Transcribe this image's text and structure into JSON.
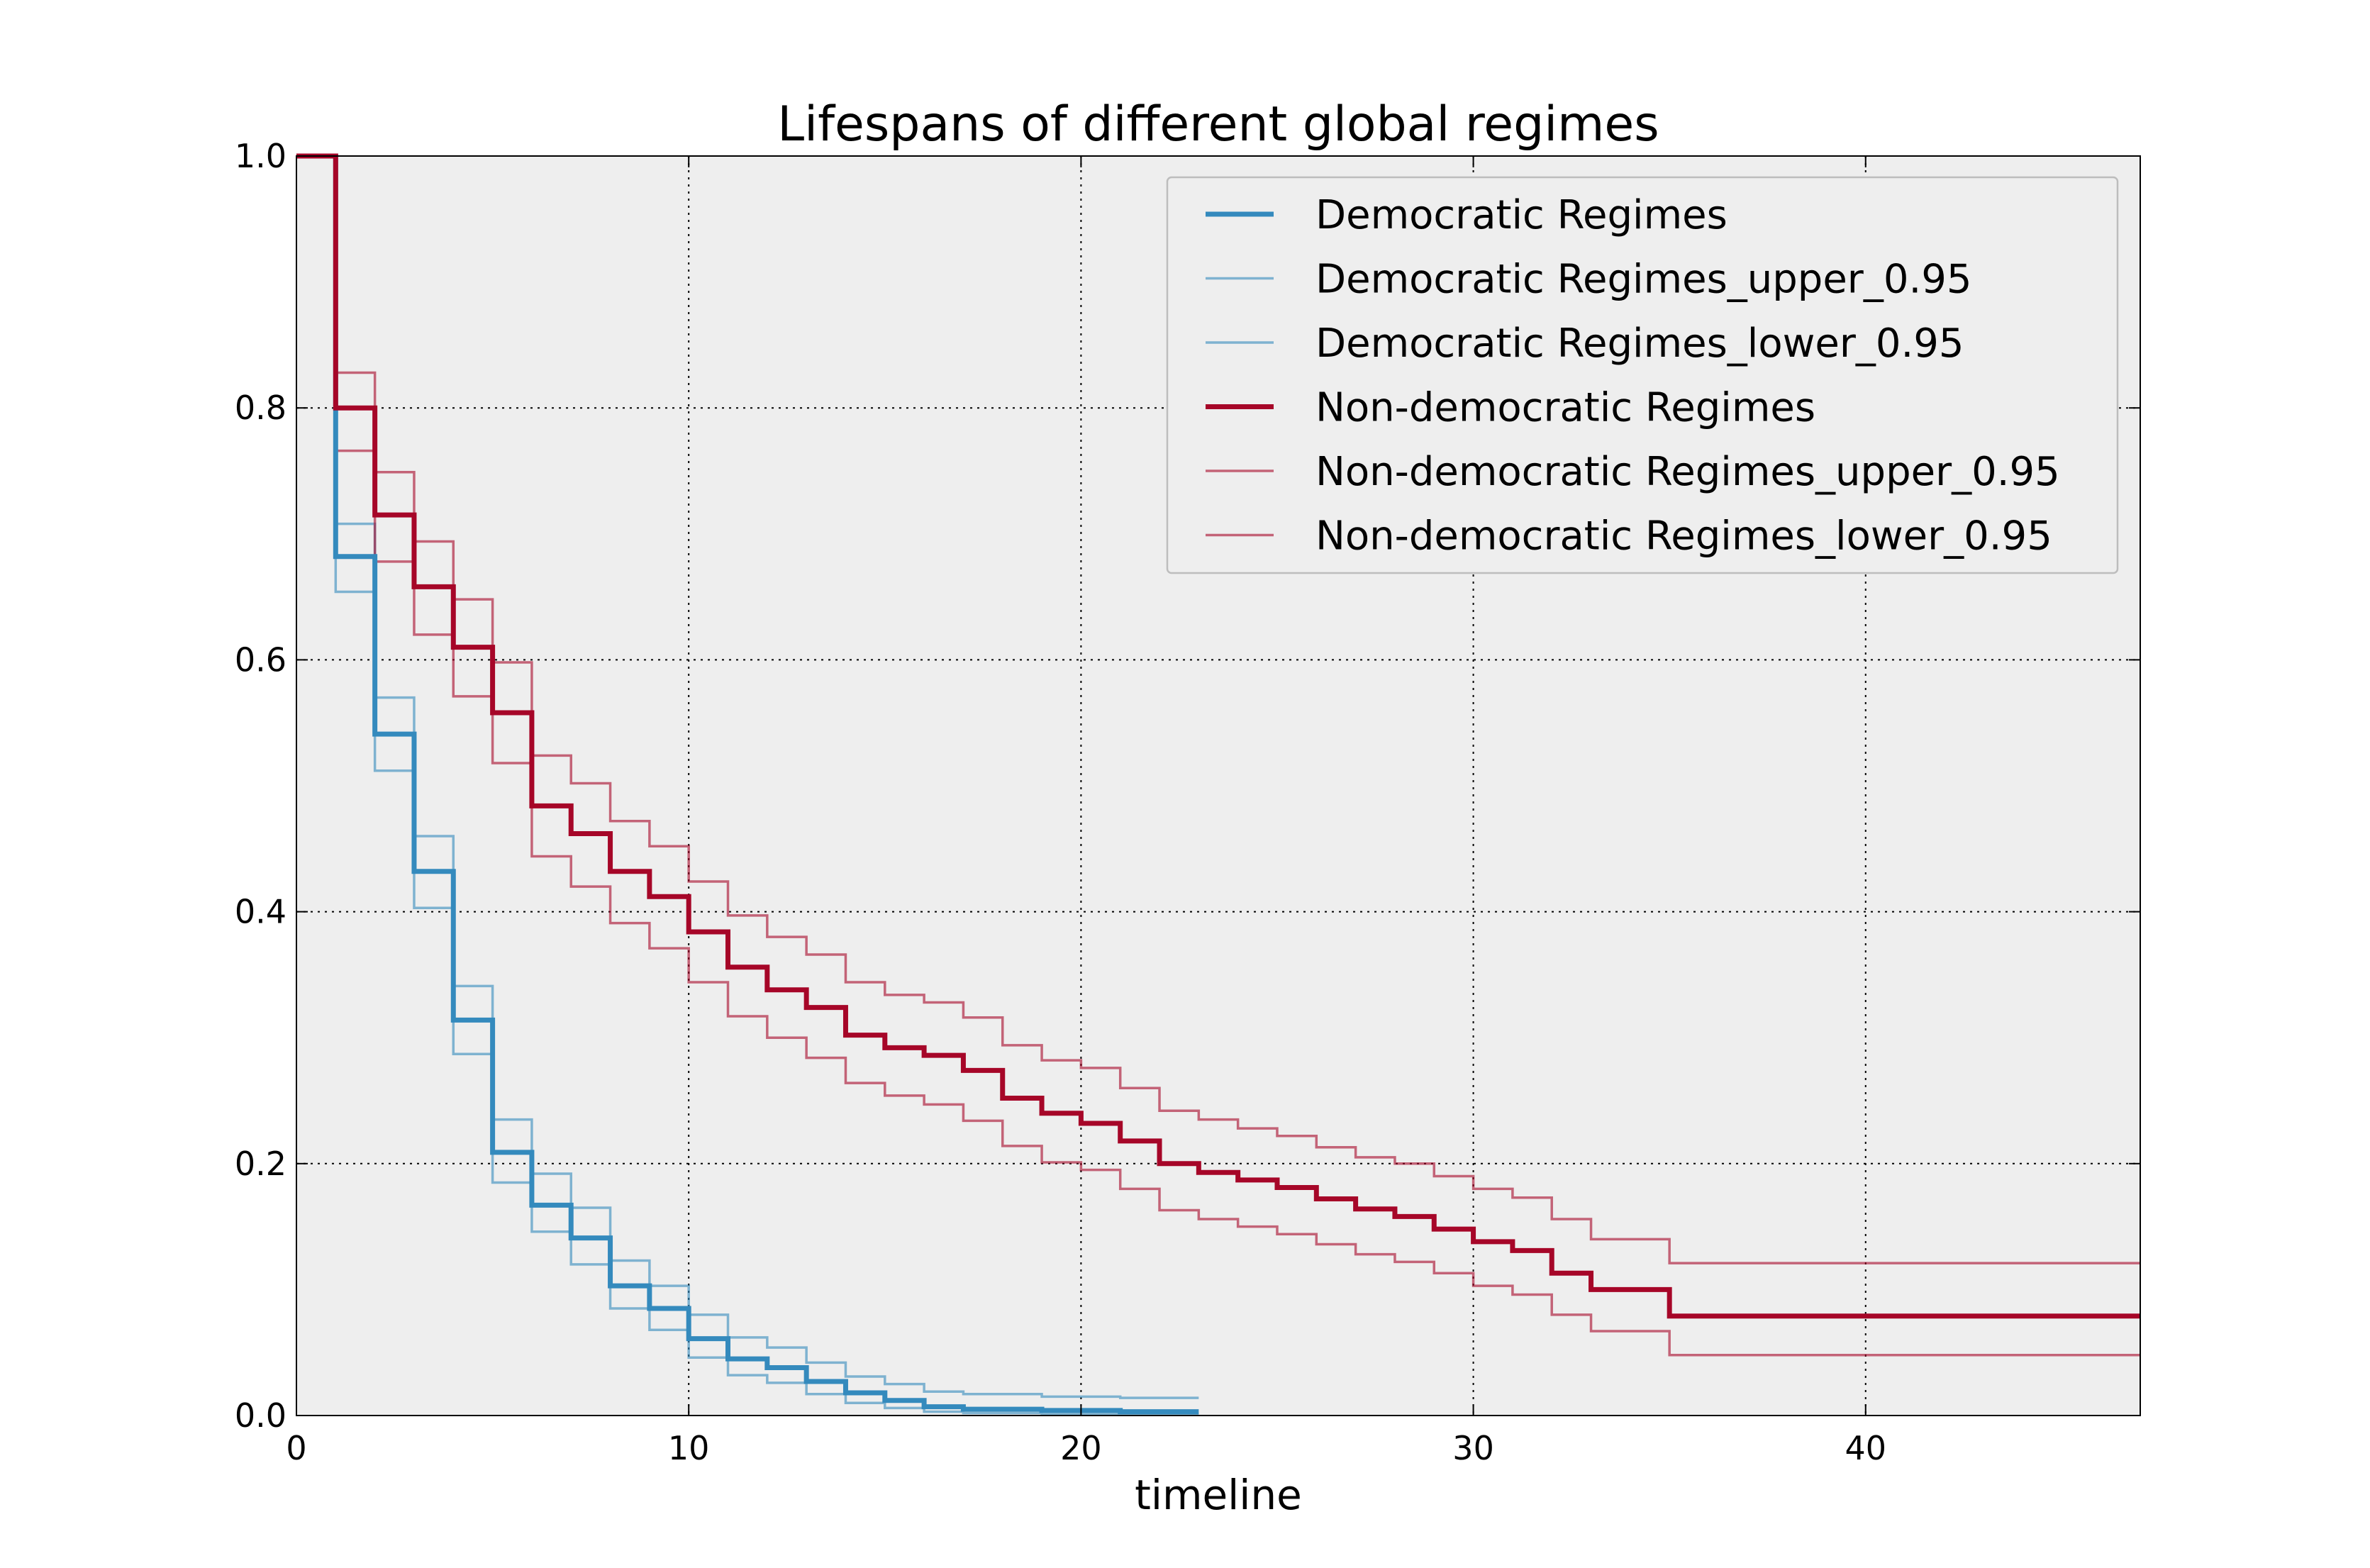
{
  "chart_data": {
    "type": "line",
    "title": "Lifespans of different global regimes",
    "xlabel": "timeline",
    "ylabel": "",
    "xlim": [
      0,
      47
    ],
    "ylim": [
      0.0,
      1.0
    ],
    "xticks": [
      0,
      10,
      20,
      30,
      40
    ],
    "xtick_labels": [
      "0",
      "10",
      "20",
      "30",
      "40"
    ],
    "yticks": [
      0.0,
      0.2,
      0.4,
      0.6,
      0.8,
      1.0
    ],
    "ytick_labels": [
      "0.0",
      "0.2",
      "0.4",
      "0.6",
      "0.8",
      "1.0"
    ],
    "grid": true,
    "legend_position": "top-right",
    "plot_background": "#eeeeee",
    "series": [
      {
        "name": "Democratic Regimes",
        "color": "#348abd",
        "style": "main",
        "step": "post",
        "x": [
          0,
          1,
          2,
          3,
          4,
          5,
          6,
          7,
          8,
          9,
          10,
          11,
          12,
          13,
          14,
          15,
          16,
          17,
          19,
          20,
          21,
          23
        ],
        "y": [
          1.0,
          0.682,
          0.541,
          0.432,
          0.314,
          0.209,
          0.167,
          0.141,
          0.103,
          0.085,
          0.061,
          0.045,
          0.038,
          0.027,
          0.018,
          0.012,
          0.007,
          0.005,
          0.004,
          0.004,
          0.003,
          0.003
        ]
      },
      {
        "name": "Democratic Regimes_upper_0.95",
        "color": "#348abd",
        "style": "ci",
        "step": "post",
        "x": [
          0,
          1,
          2,
          3,
          4,
          5,
          6,
          7,
          8,
          9,
          10,
          11,
          12,
          13,
          14,
          15,
          16,
          17,
          19,
          20,
          21,
          23
        ],
        "y": [
          1.0,
          0.708,
          0.57,
          0.46,
          0.341,
          0.235,
          0.192,
          0.165,
          0.123,
          0.103,
          0.08,
          0.062,
          0.054,
          0.042,
          0.031,
          0.025,
          0.019,
          0.017,
          0.015,
          0.015,
          0.014,
          0.014
        ]
      },
      {
        "name": "Democratic Regimes_lower_0.95",
        "color": "#348abd",
        "style": "ci",
        "step": "post",
        "x": [
          0,
          1,
          2,
          3,
          4,
          5,
          6,
          7,
          8,
          9,
          10,
          11,
          12,
          13,
          14,
          15,
          16,
          17,
          19,
          20,
          21,
          23
        ],
        "y": [
          1.0,
          0.654,
          0.512,
          0.403,
          0.287,
          0.185,
          0.146,
          0.12,
          0.085,
          0.068,
          0.046,
          0.032,
          0.026,
          0.017,
          0.01,
          0.006,
          0.003,
          0.002,
          0.001,
          0.001,
          0.001,
          0.001
        ]
      },
      {
        "name": "Non-democratic Regimes",
        "color": "#a60628",
        "style": "main",
        "step": "post",
        "x": [
          0,
          1,
          2,
          3,
          4,
          5,
          6,
          7,
          8,
          9,
          10,
          11,
          12,
          13,
          14,
          15,
          16,
          17,
          18,
          19,
          20,
          21,
          22,
          23,
          24,
          25,
          26,
          27,
          28,
          29,
          30,
          31,
          32,
          33,
          35,
          47
        ],
        "y": [
          1.0,
          0.8,
          0.715,
          0.658,
          0.61,
          0.558,
          0.484,
          0.462,
          0.432,
          0.412,
          0.384,
          0.356,
          0.338,
          0.324,
          0.302,
          0.292,
          0.286,
          0.274,
          0.252,
          0.24,
          0.232,
          0.218,
          0.2,
          0.193,
          0.187,
          0.181,
          0.172,
          0.164,
          0.158,
          0.148,
          0.138,
          0.131,
          0.113,
          0.1,
          0.079,
          0.079
        ]
      },
      {
        "name": "Non-democratic Regimes_upper_0.95",
        "color": "#a60628",
        "style": "ci",
        "step": "post",
        "x": [
          0,
          1,
          2,
          3,
          4,
          5,
          6,
          7,
          8,
          9,
          10,
          11,
          12,
          13,
          14,
          15,
          16,
          17,
          18,
          19,
          20,
          21,
          22,
          23,
          24,
          25,
          26,
          27,
          28,
          29,
          30,
          31,
          32,
          33,
          35,
          47
        ],
        "y": [
          1.0,
          0.828,
          0.749,
          0.694,
          0.648,
          0.598,
          0.524,
          0.502,
          0.472,
          0.452,
          0.424,
          0.397,
          0.38,
          0.366,
          0.344,
          0.334,
          0.328,
          0.316,
          0.294,
          0.282,
          0.276,
          0.26,
          0.242,
          0.235,
          0.228,
          0.222,
          0.213,
          0.205,
          0.2,
          0.19,
          0.18,
          0.173,
          0.156,
          0.14,
          0.121,
          0.121
        ]
      },
      {
        "name": "Non-democratic Regimes_lower_0.95",
        "color": "#a60628",
        "style": "ci",
        "step": "post",
        "x": [
          0,
          1,
          2,
          3,
          4,
          5,
          6,
          7,
          8,
          9,
          10,
          11,
          12,
          13,
          14,
          15,
          16,
          17,
          18,
          19,
          20,
          21,
          22,
          23,
          24,
          25,
          26,
          27,
          28,
          29,
          30,
          31,
          32,
          33,
          35,
          47
        ],
        "y": [
          1.0,
          0.766,
          0.678,
          0.62,
          0.571,
          0.518,
          0.444,
          0.42,
          0.391,
          0.371,
          0.344,
          0.317,
          0.3,
          0.284,
          0.264,
          0.254,
          0.247,
          0.234,
          0.214,
          0.201,
          0.195,
          0.18,
          0.163,
          0.156,
          0.15,
          0.144,
          0.136,
          0.128,
          0.122,
          0.113,
          0.103,
          0.096,
          0.08,
          0.067,
          0.048,
          0.048
        ]
      }
    ]
  }
}
